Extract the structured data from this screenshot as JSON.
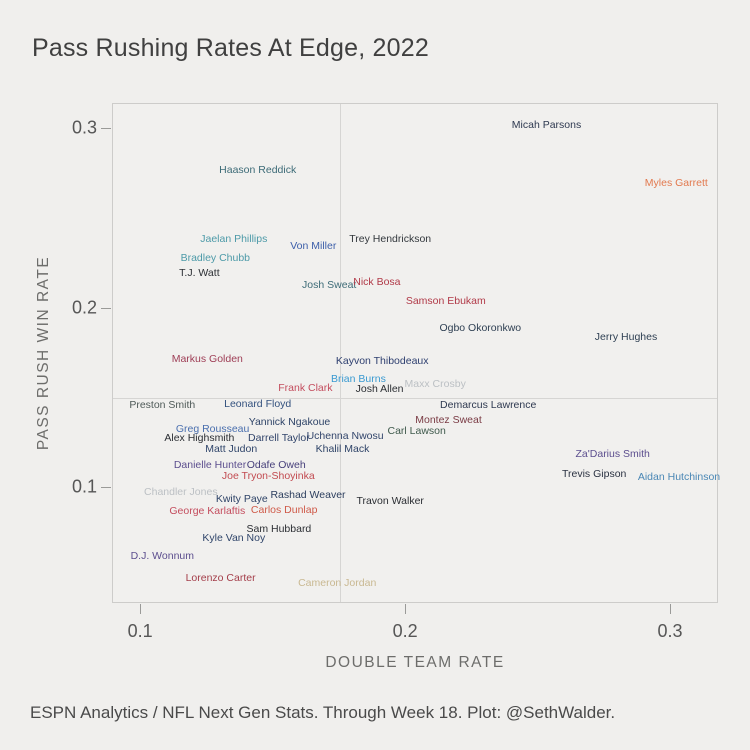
{
  "page": {
    "background": "#f0efed",
    "caption": "ESPN Analytics / NFL Next Gen Stats. Through Week 18. Plot: @SethWalder."
  },
  "chart_data": {
    "type": "scatter",
    "title": "Pass Rushing Rates At Edge, 2022",
    "xlabel": "DOUBLE TEAM RATE",
    "ylabel": "PASS RUSH WIN RATE",
    "xlim": [
      0.0894,
      0.3181
    ],
    "ylim": [
      0.0354,
      0.3139
    ],
    "xticks": [
      0.1,
      0.2,
      0.3
    ],
    "yticks": [
      0.1,
      0.2,
      0.3
    ],
    "grid": false,
    "legend": "none",
    "marker_style": "team-colored text labels only (no dot markers)",
    "reference_lines": {
      "x": 0.175,
      "y": 0.15
    },
    "points": [
      {
        "name": "Micah Parsons",
        "x": 0.253,
        "y": 0.302,
        "color": "#2e3950"
      },
      {
        "name": "Myles Garrett",
        "x": 0.302,
        "y": 0.27,
        "color": "#e2794e"
      },
      {
        "name": "Haason Reddick",
        "x": 0.144,
        "y": 0.277,
        "color": "#3d6b77"
      },
      {
        "name": "Jaelan Phillips",
        "x": 0.135,
        "y": 0.239,
        "color": "#4d9aa8"
      },
      {
        "name": "Von Miller",
        "x": 0.165,
        "y": 0.235,
        "color": "#3c5ea9"
      },
      {
        "name": "Trey Hendrickson",
        "x": 0.194,
        "y": 0.239,
        "color": "#33383d"
      },
      {
        "name": "Bradley Chubb",
        "x": 0.128,
        "y": 0.228,
        "color": "#4d9aa8"
      },
      {
        "name": "T.J. Watt",
        "x": 0.122,
        "y": 0.22,
        "color": "#2b2e33"
      },
      {
        "name": "Josh Sweat",
        "x": 0.171,
        "y": 0.213,
        "color": "#3d6b77"
      },
      {
        "name": "Nick Bosa",
        "x": 0.189,
        "y": 0.215,
        "color": "#b13a48"
      },
      {
        "name": "Samson Ebukam",
        "x": 0.215,
        "y": 0.204,
        "color": "#b13a48"
      },
      {
        "name": "Ogbo Okoronkwo",
        "x": 0.228,
        "y": 0.189,
        "color": "#2e3f52"
      },
      {
        "name": "Jerry Hughes",
        "x": 0.283,
        "y": 0.184,
        "color": "#2e3f52"
      },
      {
        "name": "Markus Golden",
        "x": 0.125,
        "y": 0.172,
        "color": "#9e3d55"
      },
      {
        "name": "Kayvon Thibodeaux",
        "x": 0.191,
        "y": 0.171,
        "color": "#2f4070"
      },
      {
        "name": "Brian Burns",
        "x": 0.182,
        "y": 0.161,
        "color": "#3a9ad1"
      },
      {
        "name": "Frank Clark",
        "x": 0.162,
        "y": 0.156,
        "color": "#c44d5e"
      },
      {
        "name": "Josh Allen",
        "x": 0.19,
        "y": 0.155,
        "color": "#2b2e33"
      },
      {
        "name": "Maxx Crosby",
        "x": 0.211,
        "y": 0.158,
        "color": "#bcc0c4"
      },
      {
        "name": "Preston Smith",
        "x": 0.108,
        "y": 0.146,
        "color": "#4f5a58"
      },
      {
        "name": "Leonard Floyd",
        "x": 0.144,
        "y": 0.147,
        "color": "#33517e"
      },
      {
        "name": "Demarcus Lawrence",
        "x": 0.231,
        "y": 0.146,
        "color": "#2e3950"
      },
      {
        "name": "Greg Rousseau",
        "x": 0.127,
        "y": 0.133,
        "color": "#4a6fae"
      },
      {
        "name": "Yannick Ngakoue",
        "x": 0.156,
        "y": 0.137,
        "color": "#2f4468"
      },
      {
        "name": "Alex Highsmith",
        "x": 0.122,
        "y": 0.128,
        "color": "#2b2e33"
      },
      {
        "name": "Darrell Taylor",
        "x": 0.152,
        "y": 0.128,
        "color": "#32456b"
      },
      {
        "name": "Uchenna Nwosu",
        "x": 0.177,
        "y": 0.129,
        "color": "#32456b"
      },
      {
        "name": "Carl Lawson",
        "x": 0.204,
        "y": 0.132,
        "color": "#3f5a4c"
      },
      {
        "name": "Montez Sweat",
        "x": 0.216,
        "y": 0.138,
        "color": "#7a3b44"
      },
      {
        "name": "Matt Judon",
        "x": 0.134,
        "y": 0.122,
        "color": "#30456a"
      },
      {
        "name": "Khalil Mack",
        "x": 0.176,
        "y": 0.122,
        "color": "#2f4468"
      },
      {
        "name": "Danielle Hunter",
        "x": 0.126,
        "y": 0.113,
        "color": "#5c4e8e"
      },
      {
        "name": "Odafe Oweh",
        "x": 0.151,
        "y": 0.113,
        "color": "#463f7a"
      },
      {
        "name": "Joe Tryon-Shoyinka",
        "x": 0.148,
        "y": 0.107,
        "color": "#c24a50"
      },
      {
        "name": "Za'Darius Smith",
        "x": 0.278,
        "y": 0.119,
        "color": "#5c4e8e"
      },
      {
        "name": "Trevis Gipson",
        "x": 0.271,
        "y": 0.108,
        "color": "#2b3242"
      },
      {
        "name": "Aidan Hutchinson",
        "x": 0.303,
        "y": 0.106,
        "color": "#4a87b5"
      },
      {
        "name": "Chandler Jones",
        "x": 0.115,
        "y": 0.098,
        "color": "#bcc0c4"
      },
      {
        "name": "Kwity Paye",
        "x": 0.138,
        "y": 0.094,
        "color": "#2f4468"
      },
      {
        "name": "Rashad Weaver",
        "x": 0.163,
        "y": 0.096,
        "color": "#2c3e5e"
      },
      {
        "name": "Travon Walker",
        "x": 0.194,
        "y": 0.093,
        "color": "#2b2e33"
      },
      {
        "name": "George Karlaftis",
        "x": 0.125,
        "y": 0.087,
        "color": "#c44d5e"
      },
      {
        "name": "Carlos Dunlap",
        "x": 0.154,
        "y": 0.088,
        "color": "#cf5a49"
      },
      {
        "name": "Sam Hubbard",
        "x": 0.152,
        "y": 0.077,
        "color": "#2b2e33"
      },
      {
        "name": "Kyle Van Noy",
        "x": 0.135,
        "y": 0.072,
        "color": "#30456a"
      },
      {
        "name": "D.J. Wonnum",
        "x": 0.108,
        "y": 0.062,
        "color": "#5c4e8e"
      },
      {
        "name": "Lorenzo Carter",
        "x": 0.13,
        "y": 0.05,
        "color": "#a43e4a"
      },
      {
        "name": "Cameron Jordan",
        "x": 0.174,
        "y": 0.047,
        "color": "#c9b891"
      }
    ]
  }
}
